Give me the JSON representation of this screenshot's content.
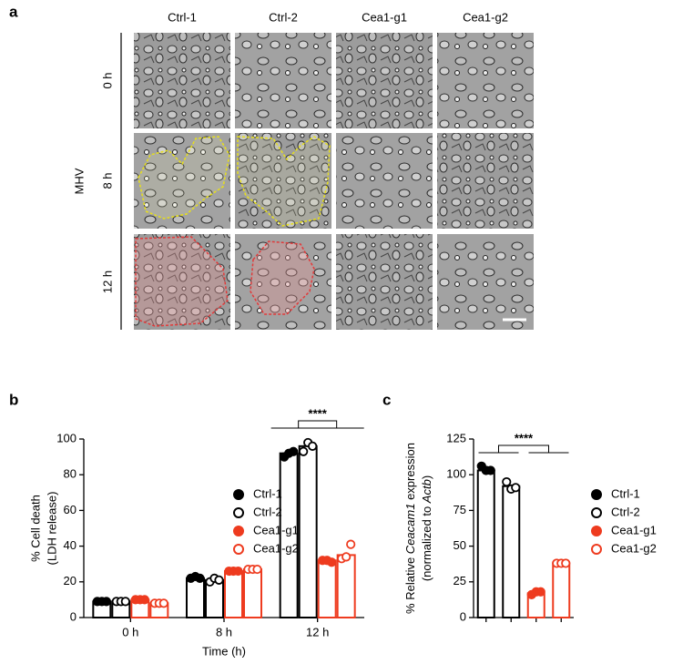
{
  "panel_a": {
    "letter": "a",
    "columns": [
      "Ctrl-1",
      "Ctrl-2",
      "Cea1-g1",
      "Cea1-g2"
    ],
    "rows": [
      "0 h",
      "8 h",
      "12 h"
    ],
    "group_label": "MHV"
  },
  "chart_data": [
    {
      "type": "bar",
      "letter": "b",
      "y_label": "% Cell death",
      "y_label_2": "(LDH release)",
      "x_label": "Time (h)",
      "categories": [
        "0 h",
        "8 h",
        "12 h"
      ],
      "series": [
        {
          "name": "Ctrl-1",
          "color": "#000000",
          "filled": true,
          "values": [
            9,
            22,
            92
          ],
          "points": [
            [
              9,
              9,
              9
            ],
            [
              22,
              23,
              22
            ],
            [
              90,
              92,
              93
            ]
          ]
        },
        {
          "name": "Ctrl-2",
          "color": "#000000",
          "filled": false,
          "values": [
            9,
            21,
            96
          ],
          "points": [
            [
              9,
              9,
              9
            ],
            [
              20,
              22,
              21
            ],
            [
              93,
              98,
              96
            ]
          ]
        },
        {
          "name": "Cea1-g1",
          "color": "#ee3b1f",
          "filled": true,
          "values": [
            10,
            26,
            32
          ],
          "points": [
            [
              10,
              10,
              10
            ],
            [
              26,
              26,
              26
            ],
            [
              32,
              32,
              31
            ]
          ]
        },
        {
          "name": "Cea1-g2",
          "color": "#ee3b1f",
          "filled": false,
          "values": [
            8,
            27,
            35
          ],
          "points": [
            [
              8,
              8,
              8
            ],
            [
              27,
              27,
              27
            ],
            [
              33,
              34,
              41
            ]
          ]
        }
      ],
      "ylim": [
        0,
        100
      ],
      "yticks": [
        0,
        20,
        40,
        60,
        80,
        100
      ],
      "legend": "upper left",
      "annotations": [
        {
          "text": "****"
        }
      ]
    },
    {
      "type": "bar",
      "letter": "c",
      "y_label": [
        "% Relative ",
        "Ceacam1",
        " expression"
      ],
      "y_label_2": [
        "(normalized to ",
        "Actb",
        ")"
      ],
      "categories": [
        null
      ],
      "series": [
        {
          "name": "Ctrl-1",
          "color": "#000000",
          "filled": true,
          "values": [
            103
          ],
          "points": [
            [
              106,
              103,
              103
            ]
          ]
        },
        {
          "name": "Ctrl-2",
          "color": "#000000",
          "filled": false,
          "values": [
            92
          ],
          "points": [
            [
              95,
              90,
              91
            ]
          ]
        },
        {
          "name": "Cea1-g1",
          "color": "#ee3b1f",
          "filled": true,
          "values": [
            17
          ],
          "points": [
            [
              16,
              18,
              18
            ]
          ]
        },
        {
          "name": "Cea1-g2",
          "color": "#ee3b1f",
          "filled": false,
          "values": [
            38
          ],
          "points": [
            [
              38,
              38,
              38
            ]
          ]
        }
      ],
      "ylim": [
        0,
        125
      ],
      "yticks": [
        0,
        25,
        50,
        75,
        100,
        125
      ],
      "legend": "right",
      "annotations": [
        {
          "text": "****"
        }
      ]
    }
  ]
}
